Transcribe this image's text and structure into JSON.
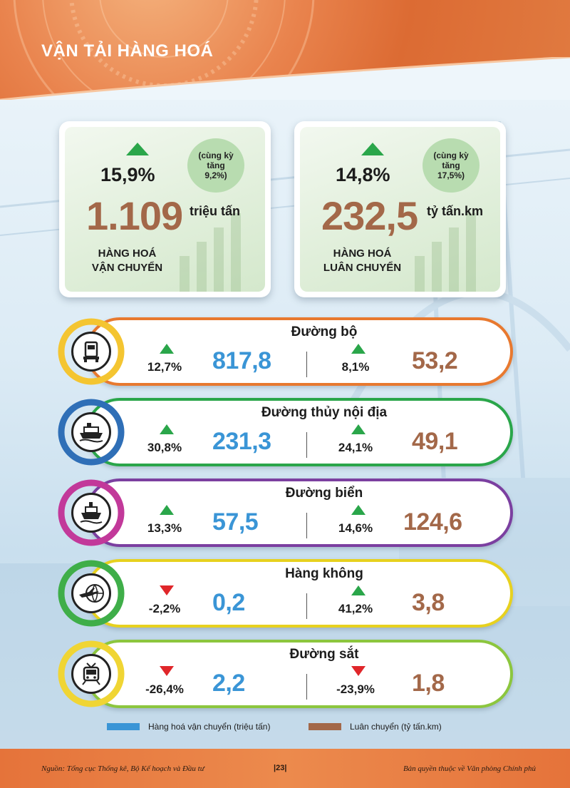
{
  "header": {
    "title": "VẬN TẢI HÀNG HOÁ"
  },
  "cards": [
    {
      "pct": "15,9%",
      "yoy": [
        "(cùng kỳ",
        "tăng",
        "9,2%)"
      ],
      "value": "1.109",
      "unit": "triệu tấn",
      "label": [
        "HÀNG HOÁ",
        "VẬN CHUYỂN"
      ]
    },
    {
      "pct": "14,8%",
      "yoy": [
        "(cùng kỳ",
        "tăng",
        "17,5%)"
      ],
      "value": "232,5",
      "unit": "tỷ tấn.km",
      "label": [
        "HÀNG HOÁ",
        "LUÂN CHUYỂN"
      ]
    }
  ],
  "modes": [
    {
      "name": "Đường bộ",
      "icon": "truck-icon",
      "color": "#e8792f",
      "ring": "#f4c531",
      "transport_pct": "12,7%",
      "transport_dir": "up",
      "transport_value": "817,8",
      "turnover_pct": "8,1%",
      "turnover_dir": "up",
      "turnover_value": "53,2"
    },
    {
      "name": "Đường thủy nội địa",
      "icon": "river-boat-icon",
      "color": "#2aa64a",
      "ring": "#2f6fb7",
      "transport_pct": "30,8%",
      "transport_dir": "up",
      "transport_value": "231,3",
      "turnover_pct": "24,1%",
      "turnover_dir": "up",
      "turnover_value": "49,1"
    },
    {
      "name": "Đường biển",
      "icon": "ship-icon",
      "color": "#7b3fa0",
      "ring": "#c2399a",
      "transport_pct": "13,3%",
      "transport_dir": "up",
      "transport_value": "57,5",
      "turnover_pct": "14,6%",
      "turnover_dir": "up",
      "turnover_value": "124,6"
    },
    {
      "name": "Hàng không",
      "icon": "airplane-globe-icon",
      "color": "#e7d11f",
      "ring": "#3fae49",
      "transport_pct": "-2,2%",
      "transport_dir": "down",
      "transport_value": "0,2",
      "turnover_pct": "41,2%",
      "turnover_dir": "up",
      "turnover_value": "3,8"
    },
    {
      "name": "Đường sắt",
      "icon": "train-icon",
      "color": "#8cc63e",
      "ring": "#f0d534",
      "transport_pct": "-26,4%",
      "transport_dir": "down",
      "transport_value": "2,2",
      "turnover_pct": "-23,9%",
      "turnover_dir": "down",
      "turnover_value": "1,8"
    }
  ],
  "legend": [
    {
      "label": "Hàng hoá vận chuyển (triệu tấn)",
      "color": "#3a95d6"
    },
    {
      "label": "Luân chuyển (tỷ tấn.km)",
      "color": "#a36849"
    }
  ],
  "footer": {
    "source": "Nguồn: Tổng cục Thống kê, Bộ Kế hoạch và Đầu tư",
    "page": "|23|",
    "copyright": "Bản quyền thuộc về Văn phòng Chính phủ"
  },
  "colors": {
    "up": "#2aa64a",
    "down": "#e0262a",
    "transport": "#3a95d6",
    "turnover": "#a36849"
  }
}
